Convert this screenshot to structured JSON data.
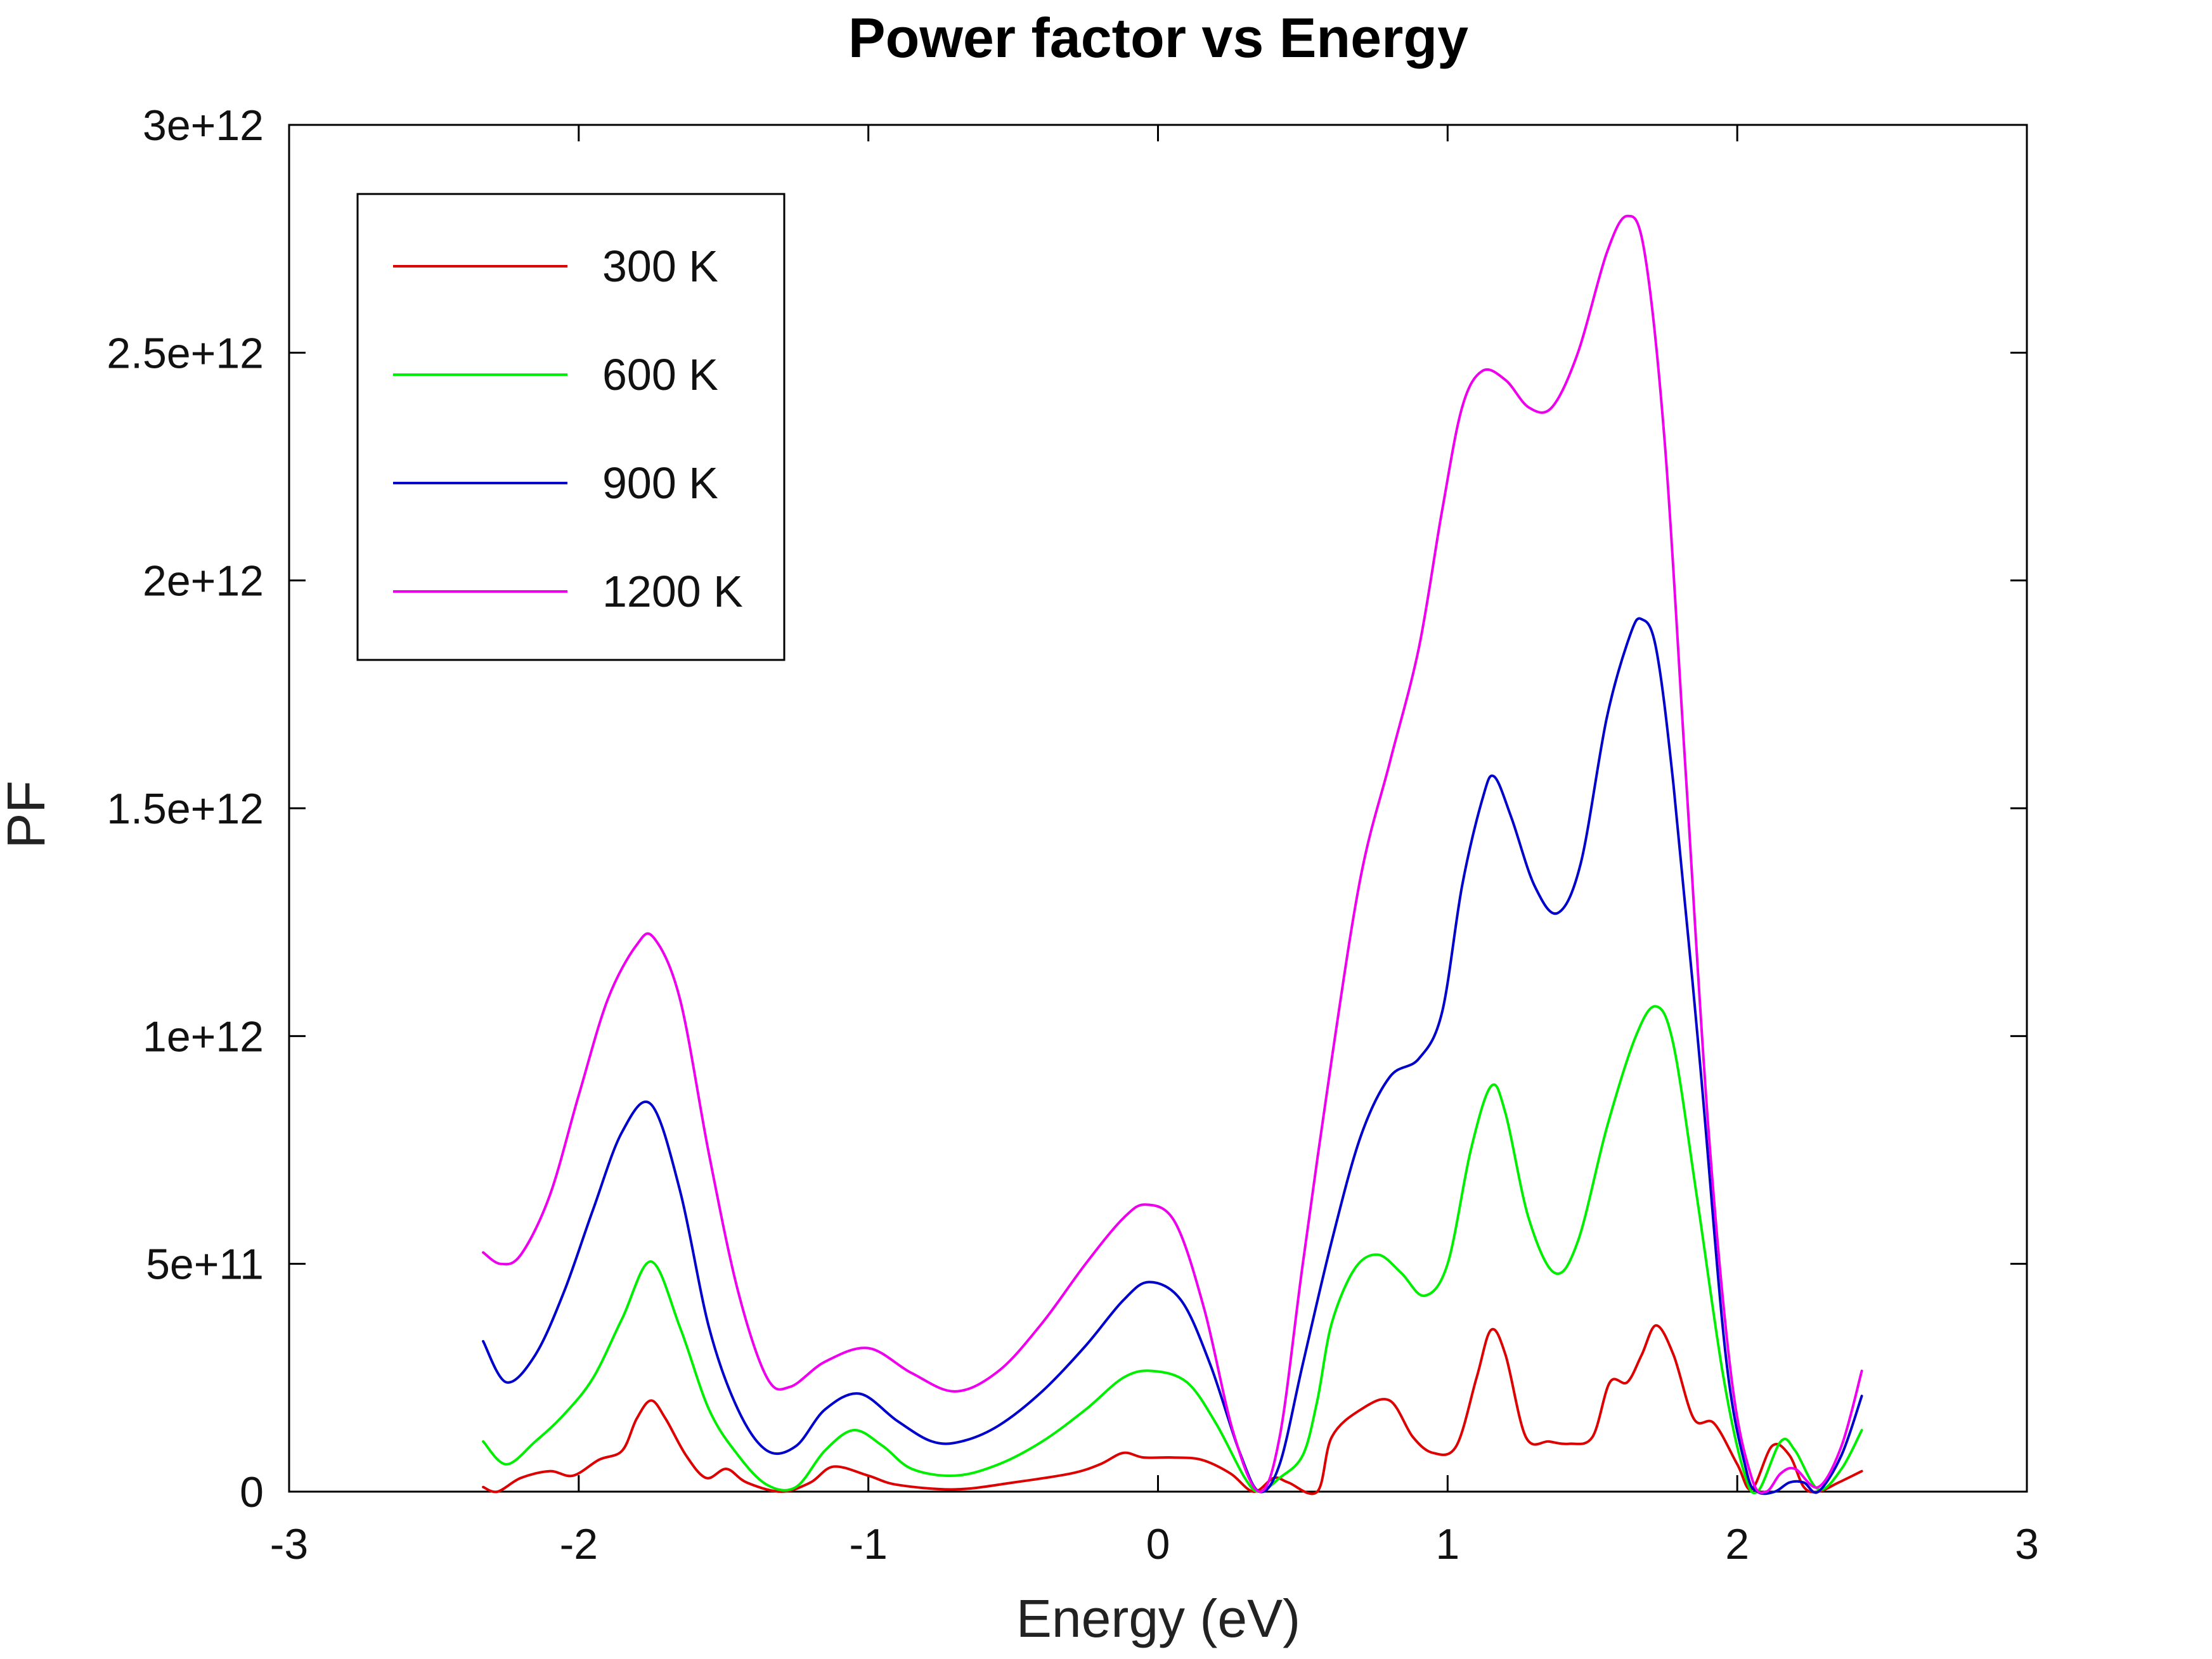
{
  "chart_data": {
    "type": "line",
    "title": "Power factor vs Energy",
    "xlabel": "Energy (eV)",
    "ylabel": "PF",
    "xlim": [
      -3,
      3
    ],
    "ylim": [
      0,
      3000000000000.0
    ],
    "xticks": [
      {
        "value": -3,
        "label": "-3"
      },
      {
        "value": -2,
        "label": "-2"
      },
      {
        "value": -1,
        "label": "-1"
      },
      {
        "value": 0,
        "label": "0"
      },
      {
        "value": 1,
        "label": "1"
      },
      {
        "value": 2,
        "label": "2"
      },
      {
        "value": 3,
        "label": "3"
      }
    ],
    "yticks": [
      {
        "value": 0,
        "label": "0"
      },
      {
        "value": 500000000000.0,
        "label": "5e+11"
      },
      {
        "value": 1000000000000.0,
        "label": "1e+12"
      },
      {
        "value": 1500000000000.0,
        "label": "1.5e+12"
      },
      {
        "value": 2000000000000.0,
        "label": "2e+12"
      },
      {
        "value": 2500000000000.0,
        "label": "2.5e+12"
      },
      {
        "value": 3000000000000.0,
        "label": "3e+12"
      }
    ],
    "grid": false,
    "legend_position": "top-left",
    "series": [
      {
        "name": "300 K",
        "color": "#dd0000",
        "points": [
          [
            -2.33,
            10000000000.0
          ],
          [
            -2.28,
            0.0
          ],
          [
            -2.2,
            30000000000.0
          ],
          [
            -2.1,
            45000000000.0
          ],
          [
            -2.02,
            35000000000.0
          ],
          [
            -1.93,
            70000000000.0
          ],
          [
            -1.85,
            90000000000.0
          ],
          [
            -1.8,
            160000000000.0
          ],
          [
            -1.75,
            200000000000.0
          ],
          [
            -1.7,
            160000000000.0
          ],
          [
            -1.63,
            80000000000.0
          ],
          [
            -1.56,
            30000000000.0
          ],
          [
            -1.49,
            50000000000.0
          ],
          [
            -1.42,
            20000000000.0
          ],
          [
            -1.3,
            0.0
          ],
          [
            -1.2,
            20000000000.0
          ],
          [
            -1.12,
            55000000000.0
          ],
          [
            -1.0,
            35000000000.0
          ],
          [
            -0.9,
            15000000000.0
          ],
          [
            -0.7,
            5000000000.0
          ],
          [
            -0.5,
            20000000000.0
          ],
          [
            -0.3,
            40000000000.0
          ],
          [
            -0.2,
            60000000000.0
          ],
          [
            -0.12,
            85000000000.0
          ],
          [
            -0.05,
            75000000000.0
          ],
          [
            0.05,
            75000000000.0
          ],
          [
            0.15,
            70000000000.0
          ],
          [
            0.25,
            40000000000.0
          ],
          [
            0.33,
            0.0
          ],
          [
            0.4,
            30000000000.0
          ],
          [
            0.45,
            20000000000.0
          ],
          [
            0.55,
            0.0
          ],
          [
            0.6,
            120000000000.0
          ],
          [
            0.7,
            180000000000.0
          ],
          [
            0.8,
            200000000000.0
          ],
          [
            0.88,
            120000000000.0
          ],
          [
            0.95,
            85000000000.0
          ],
          [
            1.03,
            100000000000.0
          ],
          [
            1.1,
            250000000000.0
          ],
          [
            1.15,
            355000000000.0
          ],
          [
            1.2,
            300000000000.0
          ],
          [
            1.27,
            120000000000.0
          ],
          [
            1.35,
            110000000000.0
          ],
          [
            1.42,
            105000000000.0
          ],
          [
            1.5,
            120000000000.0
          ],
          [
            1.56,
            240000000000.0
          ],
          [
            1.62,
            240000000000.0
          ],
          [
            1.67,
            300000000000.0
          ],
          [
            1.72,
            365000000000.0
          ],
          [
            1.78,
            300000000000.0
          ],
          [
            1.85,
            160000000000.0
          ],
          [
            1.92,
            150000000000.0
          ],
          [
            2.0,
            60000000000.0
          ],
          [
            2.05,
            5000000000.0
          ],
          [
            2.12,
            100000000000.0
          ],
          [
            2.18,
            80000000000.0
          ],
          [
            2.23,
            10000000000.0
          ],
          [
            2.28,
            0.0
          ],
          [
            2.35,
            20000000000.0
          ],
          [
            2.43,
            45000000000.0
          ]
        ]
      },
      {
        "name": "600 K",
        "color": "#00ee00",
        "points": [
          [
            -2.33,
            110000000000.0
          ],
          [
            -2.25,
            60000000000.0
          ],
          [
            -2.15,
            110000000000.0
          ],
          [
            -2.05,
            170000000000.0
          ],
          [
            -1.95,
            250000000000.0
          ],
          [
            -1.85,
            380000000000.0
          ],
          [
            -1.75,
            505000000000.0
          ],
          [
            -1.65,
            360000000000.0
          ],
          [
            -1.55,
            180000000000.0
          ],
          [
            -1.45,
            80000000000.0
          ],
          [
            -1.35,
            15000000000.0
          ],
          [
            -1.25,
            10000000000.0
          ],
          [
            -1.15,
            90000000000.0
          ],
          [
            -1.05,
            135000000000.0
          ],
          [
            -0.95,
            100000000000.0
          ],
          [
            -0.85,
            50000000000.0
          ],
          [
            -0.7,
            35000000000.0
          ],
          [
            -0.55,
            60000000000.0
          ],
          [
            -0.4,
            110000000000.0
          ],
          [
            -0.25,
            180000000000.0
          ],
          [
            -0.12,
            250000000000.0
          ],
          [
            -0.02,
            265000000000.0
          ],
          [
            0.1,
            240000000000.0
          ],
          [
            0.2,
            150000000000.0
          ],
          [
            0.3,
            30000000000.0
          ],
          [
            0.35,
            0.0
          ],
          [
            0.42,
            30000000000.0
          ],
          [
            0.5,
            80000000000.0
          ],
          [
            0.55,
            200000000000.0
          ],
          [
            0.6,
            370000000000.0
          ],
          [
            0.68,
            490000000000.0
          ],
          [
            0.76,
            520000000000.0
          ],
          [
            0.84,
            480000000000.0
          ],
          [
            0.92,
            430000000000.0
          ],
          [
            1.0,
            500000000000.0
          ],
          [
            1.08,
            750000000000.0
          ],
          [
            1.15,
            890000000000.0
          ],
          [
            1.2,
            830000000000.0
          ],
          [
            1.28,
            600000000000.0
          ],
          [
            1.37,
            480000000000.0
          ],
          [
            1.45,
            550000000000.0
          ],
          [
            1.55,
            800000000000.0
          ],
          [
            1.65,
            1000000000000.0
          ],
          [
            1.72,
            1065000000000.0
          ],
          [
            1.78,
            980000000000.0
          ],
          [
            1.86,
            650000000000.0
          ],
          [
            1.95,
            260000000000.0
          ],
          [
            2.02,
            50000000000.0
          ],
          [
            2.07,
            0.0
          ],
          [
            2.15,
            110000000000.0
          ],
          [
            2.2,
            90000000000.0
          ],
          [
            2.28,
            5000000000.0
          ],
          [
            2.36,
            50000000000.0
          ],
          [
            2.43,
            135000000000.0
          ]
        ]
      },
      {
        "name": "900 K",
        "color": "#0000cc",
        "points": [
          [
            -2.33,
            330000000000.0
          ],
          [
            -2.25,
            240000000000.0
          ],
          [
            -2.15,
            300000000000.0
          ],
          [
            -2.05,
            440000000000.0
          ],
          [
            -1.95,
            620000000000.0
          ],
          [
            -1.85,
            790000000000.0
          ],
          [
            -1.75,
            850000000000.0
          ],
          [
            -1.65,
            660000000000.0
          ],
          [
            -1.55,
            360000000000.0
          ],
          [
            -1.45,
            180000000000.0
          ],
          [
            -1.35,
            90000000000.0
          ],
          [
            -1.25,
            100000000000.0
          ],
          [
            -1.15,
            180000000000.0
          ],
          [
            -1.03,
            215000000000.0
          ],
          [
            -0.9,
            155000000000.0
          ],
          [
            -0.78,
            110000000000.0
          ],
          [
            -0.68,
            110000000000.0
          ],
          [
            -0.55,
            145000000000.0
          ],
          [
            -0.4,
            220000000000.0
          ],
          [
            -0.25,
            320000000000.0
          ],
          [
            -0.12,
            420000000000.0
          ],
          [
            -0.03,
            460000000000.0
          ],
          [
            0.08,
            420000000000.0
          ],
          [
            0.18,
            280000000000.0
          ],
          [
            0.28,
            90000000000.0
          ],
          [
            0.35,
            0.0
          ],
          [
            0.42,
            60000000000.0
          ],
          [
            0.5,
            280000000000.0
          ],
          [
            0.6,
            550000000000.0
          ],
          [
            0.7,
            780000000000.0
          ],
          [
            0.8,
            910000000000.0
          ],
          [
            0.9,
            950000000000.0
          ],
          [
            0.98,
            1050000000000.0
          ],
          [
            1.05,
            1330000000000.0
          ],
          [
            1.12,
            1520000000000.0
          ],
          [
            1.16,
            1570000000000.0
          ],
          [
            1.22,
            1480000000000.0
          ],
          [
            1.3,
            1330000000000.0
          ],
          [
            1.38,
            1270000000000.0
          ],
          [
            1.46,
            1380000000000.0
          ],
          [
            1.55,
            1700000000000.0
          ],
          [
            1.63,
            1880000000000.0
          ],
          [
            1.67,
            1915000000000.0
          ],
          [
            1.72,
            1850000000000.0
          ],
          [
            1.78,
            1550000000000.0
          ],
          [
            1.87,
            950000000000.0
          ],
          [
            1.96,
            300000000000.0
          ],
          [
            2.03,
            50000000000.0
          ],
          [
            2.07,
            0.0
          ],
          [
            2.13,
            0.0
          ],
          [
            2.18,
            20000000000.0
          ],
          [
            2.23,
            20000000000.0
          ],
          [
            2.28,
            0.0
          ],
          [
            2.36,
            80000000000.0
          ],
          [
            2.43,
            210000000000.0
          ]
        ]
      },
      {
        "name": "1200 K",
        "color": "#ee00ee",
        "points": [
          [
            -2.33,
            525000000000.0
          ],
          [
            -2.27,
            500000000000.0
          ],
          [
            -2.2,
            520000000000.0
          ],
          [
            -2.1,
            650000000000.0
          ],
          [
            -2.0,
            870000000000.0
          ],
          [
            -1.9,
            1080000000000.0
          ],
          [
            -1.8,
            1200000000000.0
          ],
          [
            -1.74,
            1215000000000.0
          ],
          [
            -1.65,
            1080000000000.0
          ],
          [
            -1.55,
            740000000000.0
          ],
          [
            -1.45,
            440000000000.0
          ],
          [
            -1.35,
            250000000000.0
          ],
          [
            -1.27,
            230000000000.0
          ],
          [
            -1.15,
            285000000000.0
          ],
          [
            -1.0,
            315000000000.0
          ],
          [
            -0.85,
            260000000000.0
          ],
          [
            -0.7,
            220000000000.0
          ],
          [
            -0.55,
            265000000000.0
          ],
          [
            -0.4,
            370000000000.0
          ],
          [
            -0.25,
            500000000000.0
          ],
          [
            -0.12,
            600000000000.0
          ],
          [
            -0.04,
            630000000000.0
          ],
          [
            0.06,
            590000000000.0
          ],
          [
            0.16,
            400000000000.0
          ],
          [
            0.26,
            130000000000.0
          ],
          [
            0.35,
            0.0
          ],
          [
            0.42,
            120000000000.0
          ],
          [
            0.5,
            500000000000.0
          ],
          [
            0.6,
            950000000000.0
          ],
          [
            0.7,
            1350000000000.0
          ],
          [
            0.8,
            1600000000000.0
          ],
          [
            0.9,
            1850000000000.0
          ],
          [
            0.98,
            2150000000000.0
          ],
          [
            1.05,
            2380000000000.0
          ],
          [
            1.12,
            2460000000000.0
          ],
          [
            1.2,
            2440000000000.0
          ],
          [
            1.28,
            2380000000000.0
          ],
          [
            1.36,
            2380000000000.0
          ],
          [
            1.45,
            2500000000000.0
          ],
          [
            1.55,
            2720000000000.0
          ],
          [
            1.62,
            2800000000000.0
          ],
          [
            1.68,
            2720000000000.0
          ],
          [
            1.75,
            2300000000000.0
          ],
          [
            1.82,
            1600000000000.0
          ],
          [
            1.9,
            800000000000.0
          ],
          [
            1.98,
            250000000000.0
          ],
          [
            2.05,
            30000000000.0
          ],
          [
            2.1,
            0.0
          ],
          [
            2.15,
            40000000000.0
          ],
          [
            2.2,
            50000000000.0
          ],
          [
            2.28,
            10000000000.0
          ],
          [
            2.36,
            100000000000.0
          ],
          [
            2.43,
            265000000000.0
          ]
        ]
      }
    ]
  }
}
